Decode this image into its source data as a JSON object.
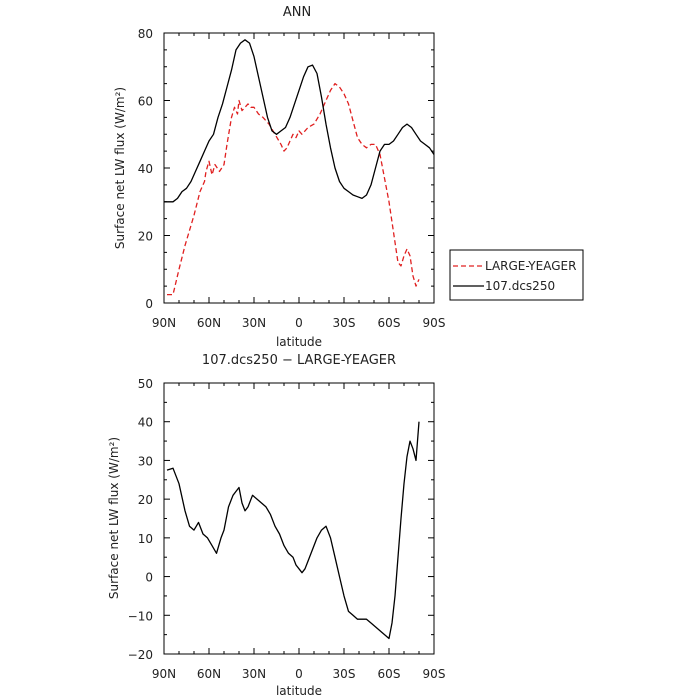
{
  "chart_data": [
    {
      "type": "line",
      "title": "ANN",
      "xlabel": "latitude",
      "ylabel": "Surface net LW flux (W/m²)",
      "xlim": [
        90,
        -90
      ],
      "ylim": [
        0,
        80
      ],
      "x_tick_values": [
        90,
        60,
        30,
        0,
        -30,
        -60,
        -90
      ],
      "x_tick_labels": [
        "90N",
        "60N",
        "30N",
        "0",
        "30S",
        "60S",
        "90S"
      ],
      "y_tick_values": [
        0,
        20,
        40,
        60,
        80
      ],
      "y_tick_labels": [
        "0",
        "20",
        "40",
        "60",
        "80"
      ],
      "legend": "right",
      "series": [
        {
          "name": "LARGE-YEAGER",
          "color": "#e02020",
          "dash": "dashed",
          "x": [
            88,
            84,
            80,
            76,
            72,
            70,
            66,
            63,
            62,
            60,
            58,
            56,
            53,
            50,
            48,
            45,
            43,
            41,
            40,
            38,
            36,
            34,
            32,
            30,
            27,
            24,
            20,
            16,
            12,
            10,
            8,
            6,
            4,
            2,
            0,
            -2,
            -4,
            -6,
            -10,
            -14,
            -18,
            -21,
            -24,
            -27,
            -30,
            -33,
            -36,
            -39,
            -42,
            -45,
            -48,
            -51,
            -54,
            -57,
            -60,
            -62,
            -64,
            -66,
            -68,
            -70,
            -72,
            -74,
            -76,
            -78,
            -80
          ],
          "y": [
            2.5,
            2.5,
            10,
            17,
            23,
            26,
            33,
            36,
            39,
            42,
            38,
            41,
            39,
            41,
            47,
            55,
            58,
            56,
            60,
            57,
            58,
            59,
            58,
            58,
            56,
            55,
            53,
            50,
            47,
            45,
            46,
            48,
            50,
            49,
            51,
            50,
            51,
            52,
            53,
            56,
            60,
            63,
            65,
            64,
            62,
            59,
            54,
            49,
            47,
            46,
            47,
            47,
            44,
            37,
            30,
            24,
            18,
            12,
            11,
            14,
            16,
            14,
            8,
            5,
            7
          ]
        },
        {
          "name": "107.dcs250",
          "color": "#000000",
          "dash": "solid",
          "x": [
            90,
            87,
            84,
            81,
            78,
            75,
            72,
            69,
            66,
            63,
            60,
            57,
            54,
            51,
            48,
            45,
            42,
            39,
            36,
            33,
            30,
            27,
            24,
            21,
            18,
            15,
            12,
            9,
            6,
            3,
            0,
            -3,
            -6,
            -9,
            -12,
            -15,
            -18,
            -21,
            -24,
            -27,
            -30,
            -33,
            -36,
            -39,
            -42,
            -45,
            -48,
            -51,
            -54,
            -57,
            -60,
            -63,
            -66,
            -69,
            -72,
            -75,
            -78,
            -81,
            -84,
            -87,
            -90
          ],
          "y": [
            30,
            30,
            30,
            31,
            33,
            34,
            36,
            39,
            42,
            45,
            48,
            50,
            55,
            59,
            64,
            69,
            75,
            77,
            78,
            77,
            73,
            67,
            61,
            55,
            51,
            50,
            51,
            52,
            55,
            59,
            63,
            67,
            70,
            70.5,
            68,
            61,
            53,
            46,
            40,
            36,
            34,
            33,
            32,
            31.5,
            31,
            32,
            35,
            40,
            45,
            47,
            47,
            48,
            50,
            52,
            53,
            52,
            50,
            48,
            47,
            46,
            44
          ]
        }
      ]
    },
    {
      "type": "line",
      "title": "107.dcs250 − LARGE-YEAGER",
      "xlabel": "latitude",
      "ylabel": "Surface net LW flux (W/m²)",
      "xlim": [
        90,
        -90
      ],
      "ylim": [
        -20,
        50
      ],
      "x_tick_values": [
        90,
        60,
        30,
        0,
        -30,
        -60,
        -90
      ],
      "x_tick_labels": [
        "90N",
        "60N",
        "30N",
        "0",
        "30S",
        "60S",
        "90S"
      ],
      "y_tick_values": [
        -20,
        -10,
        0,
        10,
        20,
        30,
        40,
        50
      ],
      "y_tick_labels": [
        "−20",
        "−10",
        "0",
        "10",
        "20",
        "30",
        "40",
        "50"
      ],
      "series": [
        {
          "name": "",
          "color": "#000000",
          "dash": "solid",
          "x": [
            88,
            84,
            80,
            76,
            73,
            70,
            67,
            64,
            61,
            58,
            55,
            52,
            50,
            47,
            44,
            42,
            40,
            38,
            36,
            34,
            31,
            28,
            25,
            22,
            19,
            16,
            13,
            10,
            7,
            4,
            2,
            0,
            -2,
            -4,
            -6,
            -9,
            -12,
            -15,
            -18,
            -21,
            -24,
            -27,
            -30,
            -33,
            -36,
            -39,
            -42,
            -45,
            -48,
            -51,
            -54,
            -57,
            -60,
            -62,
            -64,
            -66,
            -68,
            -70,
            -72,
            -74,
            -76,
            -78,
            -80
          ],
          "y": [
            27.5,
            28,
            24,
            17,
            13,
            12,
            14,
            11,
            10,
            8,
            6,
            10,
            12,
            18,
            21,
            22,
            23,
            19,
            17,
            18,
            21,
            20,
            19,
            18,
            16,
            13,
            11,
            8,
            6,
            5,
            3,
            2,
            1,
            2,
            4,
            7,
            10,
            12,
            13,
            10,
            5,
            0,
            -5,
            -9,
            -10,
            -11,
            -11,
            -11,
            -12,
            -13,
            -14,
            -15,
            -16,
            -12,
            -5,
            5,
            15,
            24,
            31,
            35,
            33,
            30,
            40
          ]
        }
      ]
    }
  ]
}
